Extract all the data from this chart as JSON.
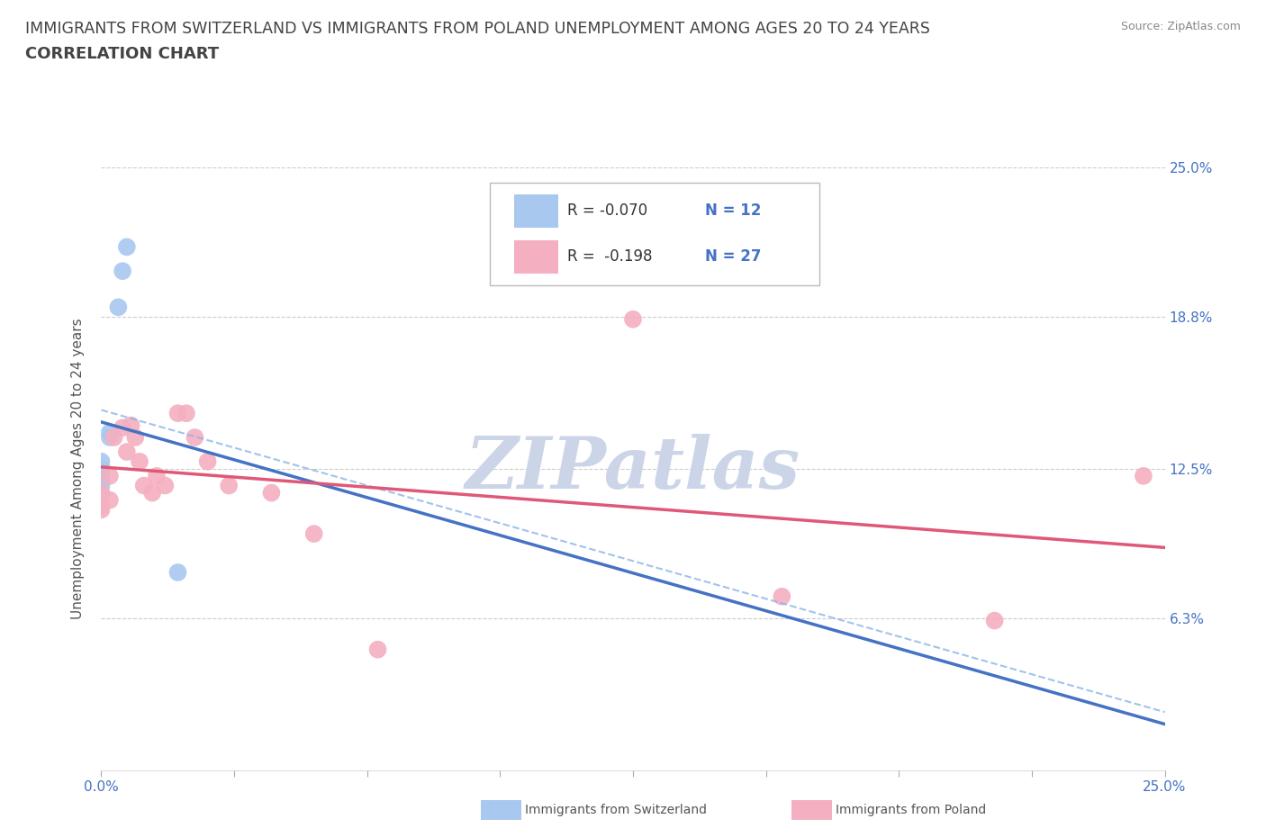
{
  "title_line1": "IMMIGRANTS FROM SWITZERLAND VS IMMIGRANTS FROM POLAND UNEMPLOYMENT AMONG AGES 20 TO 24 YEARS",
  "title_line2": "CORRELATION CHART",
  "source_text": "Source: ZipAtlas.com",
  "ylabel": "Unemployment Among Ages 20 to 24 years",
  "xmin": 0.0,
  "xmax": 0.25,
  "ymin": 0.0,
  "ymax": 0.25,
  "yticks": [
    0.0,
    0.063,
    0.125,
    0.188,
    0.25
  ],
  "ytick_labels_right": [
    "",
    "6.3%",
    "12.5%",
    "18.8%",
    "25.0%"
  ],
  "xticks": [
    0.0,
    0.03125,
    0.0625,
    0.09375,
    0.125,
    0.15625,
    0.1875,
    0.21875,
    0.25
  ],
  "xtick_labels": [
    "0.0%",
    "",
    "",
    "",
    "",
    "",
    "",
    "",
    "25.0%"
  ],
  "switzerland_x": [
    0.0,
    0.0,
    0.0,
    0.0,
    0.0,
    0.0,
    0.002,
    0.002,
    0.004,
    0.005,
    0.006,
    0.018
  ],
  "switzerland_y": [
    0.118,
    0.12,
    0.122,
    0.125,
    0.125,
    0.128,
    0.138,
    0.14,
    0.192,
    0.207,
    0.217,
    0.082
  ],
  "poland_x": [
    0.0,
    0.0,
    0.0,
    0.002,
    0.002,
    0.003,
    0.005,
    0.006,
    0.007,
    0.008,
    0.009,
    0.01,
    0.012,
    0.013,
    0.015,
    0.018,
    0.02,
    0.022,
    0.025,
    0.03,
    0.04,
    0.05,
    0.065,
    0.125,
    0.16,
    0.21,
    0.245
  ],
  "poland_y": [
    0.11,
    0.115,
    0.108,
    0.122,
    0.112,
    0.138,
    0.142,
    0.132,
    0.143,
    0.138,
    0.128,
    0.118,
    0.115,
    0.122,
    0.118,
    0.148,
    0.148,
    0.138,
    0.128,
    0.118,
    0.115,
    0.098,
    0.05,
    0.187,
    0.072,
    0.062,
    0.122
  ],
  "switzerland_color": "#a8c8f0",
  "poland_color": "#f4afc0",
  "switzerland_line_color": "#4472c4",
  "poland_line_color": "#e05878",
  "switzerland_ci_color": "#8ab4e8",
  "grid_color": "#cccccc",
  "background_color": "#ffffff",
  "watermark_color": "#ccd5e8",
  "title_color": "#444444",
  "axis_label_color": "#555555",
  "tick_label_color": "#4472c4",
  "title_fontsize": 12.5,
  "subtitle_fontsize": 13,
  "axis_label_fontsize": 11,
  "tick_fontsize": 11,
  "legend_fontsize": 12,
  "legend_r_switzerland": "R = -0.070",
  "legend_n_switzerland": "N = 12",
  "legend_r_poland": "R =  -0.198",
  "legend_n_poland": "N = 27"
}
